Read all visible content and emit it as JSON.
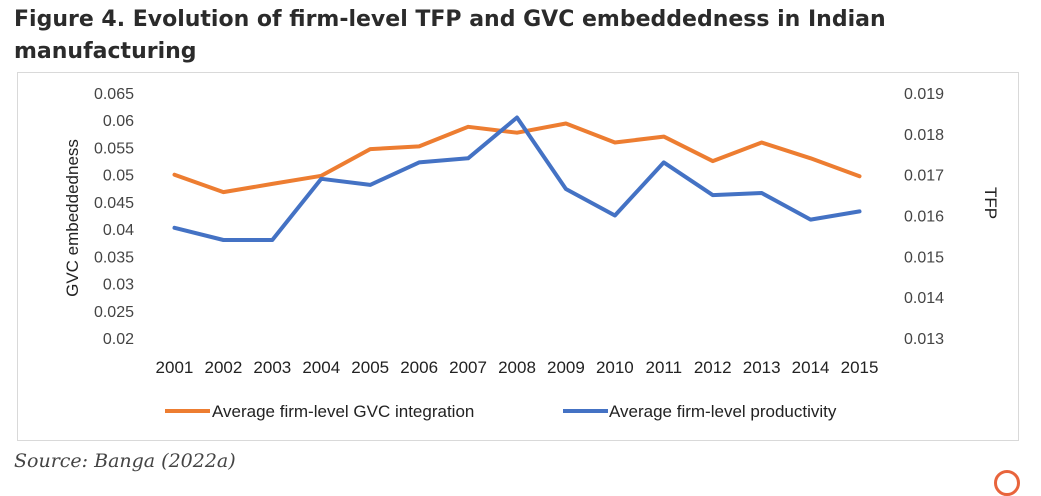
{
  "figure": {
    "title": "Figure 4. Evolution of firm-level TFP and GVC embeddedness in Indian manufacturing",
    "source": "Source: Banga (2022a)"
  },
  "chart_data": {
    "type": "line",
    "title": "",
    "x": [
      "2001",
      "2002",
      "2003",
      "2004",
      "2005",
      "2006",
      "2007",
      "2008",
      "2009",
      "2010",
      "2011",
      "2012",
      "2013",
      "2014",
      "2015"
    ],
    "ylabel": "GVC embeddedness",
    "y2label": "TFP",
    "ylim": [
      0.02,
      0.065
    ],
    "y2lim": [
      0.013,
      0.019
    ],
    "yticks": [
      "0.065",
      "0.06",
      "0.055",
      "0.05",
      "0.045",
      "0.04",
      "0.035",
      "0.03",
      "0.025",
      "0.02"
    ],
    "y2ticks": [
      "0.019",
      "0.018",
      "0.017",
      "0.016",
      "0.015",
      "0.014",
      "0.013"
    ],
    "grid": false,
    "legend_position": "bottom",
    "series": [
      {
        "name": "Average firm-level GVC integration",
        "axis": "left",
        "color": "#ED7D31",
        "values": [
          0.05,
          0.0468,
          0.0483,
          0.0498,
          0.0547,
          0.0552,
          0.0588,
          0.0577,
          0.0594,
          0.0559,
          0.057,
          0.0525,
          0.0559,
          0.053,
          0.0497
        ]
      },
      {
        "name": "Average firm-level productivity",
        "axis": "right",
        "color": "#4472C4",
        "values": [
          0.0157,
          0.0154,
          0.0154,
          0.0169,
          0.01675,
          0.0173,
          0.0174,
          0.0184,
          0.01665,
          0.016,
          0.0173,
          0.0165,
          0.01655,
          0.0159,
          0.0161
        ]
      }
    ]
  }
}
